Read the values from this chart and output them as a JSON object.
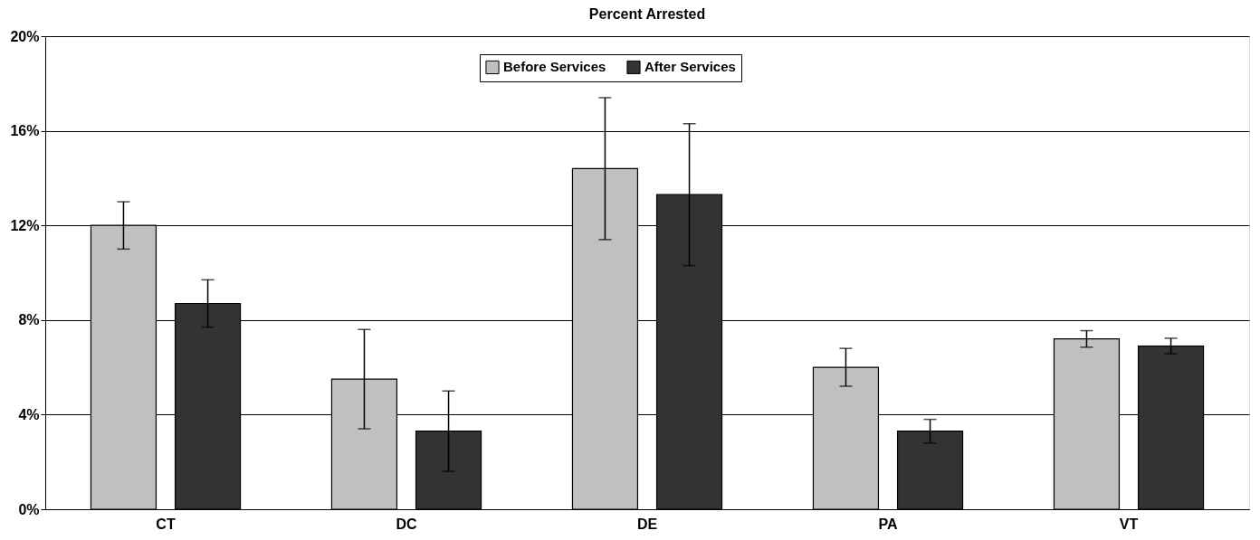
{
  "chart_data": {
    "type": "bar",
    "title": "Percent Arrested",
    "categories": [
      "CT",
      "DC",
      "DE",
      "PA",
      "VT"
    ],
    "series": [
      {
        "name": "Before Services",
        "color": "#c0c0c0",
        "values": [
          12.0,
          5.5,
          14.4,
          6.0,
          7.2
        ],
        "errors": [
          1.0,
          2.1,
          3.0,
          0.8,
          0.35
        ]
      },
      {
        "name": "After Services",
        "color": "#333333",
        "values": [
          8.7,
          3.3,
          13.3,
          3.3,
          6.9
        ],
        "errors": [
          1.0,
          1.7,
          3.0,
          0.5,
          0.33
        ]
      }
    ],
    "ylim": [
      0,
      20
    ],
    "yticks": [
      {
        "value": 0,
        "label": "0%"
      },
      {
        "value": 4,
        "label": "4%"
      },
      {
        "value": 8,
        "label": "8%"
      },
      {
        "value": 12,
        "label": "12%"
      },
      {
        "value": 16,
        "label": "16%"
      },
      {
        "value": 20,
        "label": "20%"
      }
    ],
    "grid": "y",
    "legend": "top"
  }
}
